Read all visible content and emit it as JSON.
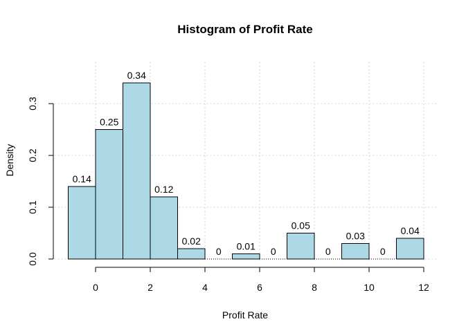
{
  "chart_data": {
    "type": "bar",
    "title": "Histogram of Profit Rate",
    "xlabel": "Profit Rate",
    "ylabel": "Density",
    "bins": [
      {
        "x0": -1,
        "x1": 0,
        "value": 0.14,
        "label": "0.14"
      },
      {
        "x0": 0,
        "x1": 1,
        "value": 0.25,
        "label": "0.25"
      },
      {
        "x0": 1,
        "x1": 2,
        "value": 0.34,
        "label": "0.34"
      },
      {
        "x0": 2,
        "x1": 3,
        "value": 0.12,
        "label": "0.12"
      },
      {
        "x0": 3,
        "x1": 4,
        "value": 0.02,
        "label": "0.02"
      },
      {
        "x0": 4,
        "x1": 5,
        "value": 0,
        "label": "0"
      },
      {
        "x0": 5,
        "x1": 6,
        "value": 0.01,
        "label": "0.01"
      },
      {
        "x0": 6,
        "x1": 7,
        "value": 0,
        "label": "0"
      },
      {
        "x0": 7,
        "x1": 8,
        "value": 0.05,
        "label": "0.05"
      },
      {
        "x0": 8,
        "x1": 9,
        "value": 0,
        "label": "0"
      },
      {
        "x0": 9,
        "x1": 10,
        "value": 0.03,
        "label": "0.03"
      },
      {
        "x0": 10,
        "x1": 11,
        "value": 0,
        "label": "0"
      },
      {
        "x0": 11,
        "x1": 12,
        "value": 0.04,
        "label": "0.04"
      }
    ],
    "xticks": [
      0,
      2,
      4,
      6,
      8,
      10,
      12
    ],
    "xtick_labels": [
      "0",
      "2",
      "4",
      "6",
      "8",
      "10",
      "12"
    ],
    "yticks": [
      0,
      0.1,
      0.2,
      0.3
    ],
    "ytick_labels": [
      "0.0",
      "0.1",
      "0.2",
      "0.3"
    ],
    "xgrid": [
      0,
      2,
      4,
      6,
      8,
      10,
      12
    ],
    "ygrid": [
      0,
      0.1,
      0.2,
      0.3
    ],
    "xlim": [
      -1,
      12
    ],
    "ylim": [
      0,
      0.34
    ],
    "grid": true,
    "bar_color": "#add8e6",
    "grid_color": "#d3d3d3"
  }
}
